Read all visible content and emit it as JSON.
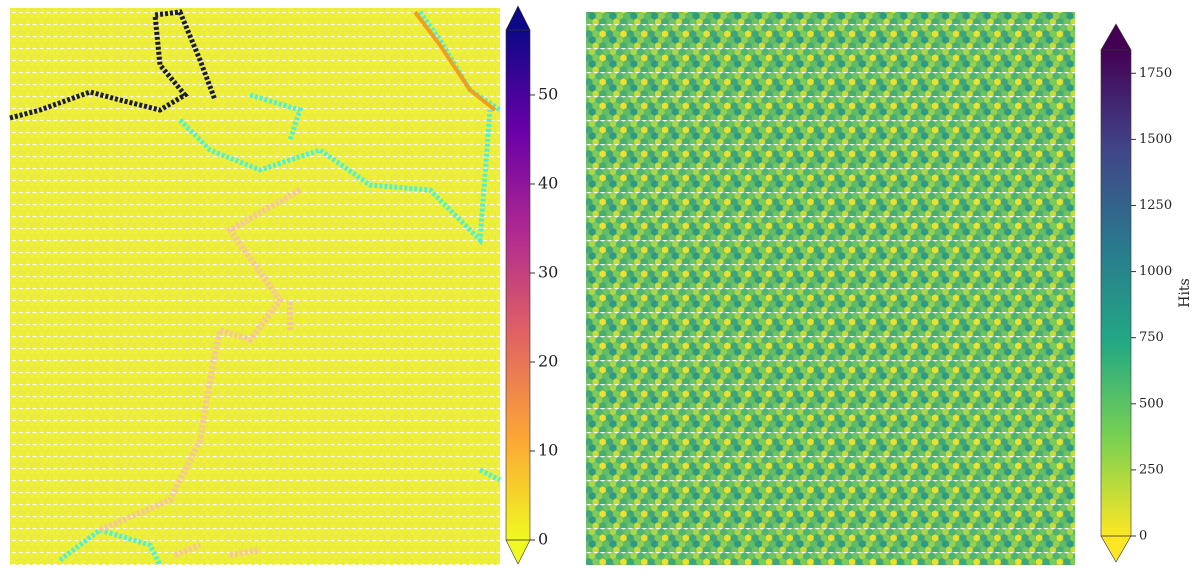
{
  "chart_data": [
    {
      "type": "heatmap",
      "colormap": [
        "#f0f921",
        "#fca636",
        "#e16462",
        "#b12a90",
        "#6a00a8",
        "#0d0887"
      ],
      "clim": [
        0,
        57.3
      ],
      "colorbar_ticks": [
        0,
        10,
        20,
        30,
        40,
        50
      ],
      "cell_color": "#eef03a"
    },
    {
      "type": "heatmap",
      "colormap": [
        "#fde725",
        "#7ad151",
        "#22a884",
        "#2a788e",
        "#414487",
        "#440154"
      ],
      "clim": [
        0,
        1838
      ],
      "colorbar_ticks": [
        0,
        250,
        500,
        750,
        1000,
        1250,
        1500,
        1750
      ],
      "colorbar_label": "Hits",
      "cell_color": "#6cc464"
    }
  ]
}
